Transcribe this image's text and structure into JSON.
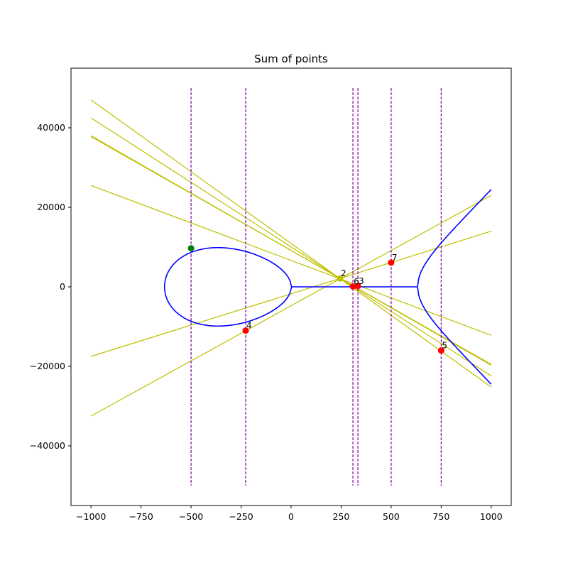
{
  "chart_data": {
    "type": "line",
    "title": "Sum of points",
    "xlabel": "",
    "ylabel": "",
    "xlim": [
      -1100,
      1100
    ],
    "ylim": [
      -55000,
      55000
    ],
    "xticks": [
      -1000,
      -750,
      -500,
      -250,
      0,
      250,
      500,
      750,
      1000
    ],
    "xtick_labels": [
      "−1000",
      "−750",
      "−500",
      "−250",
      "0",
      "250",
      "500",
      "750",
      "1000"
    ],
    "yticks": [
      -40000,
      -20000,
      0,
      20000,
      40000
    ],
    "ytick_labels": [
      "−40000",
      "−20000",
      "0",
      "20000",
      "40000"
    ],
    "grid": false,
    "curve": {
      "equation": "y^2 = x^3 - 400000x - 1000",
      "a": -400000,
      "b": -1000,
      "x_range": [
        -1000,
        1000
      ],
      "color": "#0000ff"
    },
    "chords": {
      "color": "#bfbf00",
      "x_range": [
        -1000,
        1000
      ],
      "lines": [
        {
          "y_at_x_minus_1000": 47000,
          "y_at_x_1000": -25200
        },
        {
          "y_at_x_minus_1000": 42500,
          "y_at_x_1000": -22400
        },
        {
          "y_at_x_minus_1000": 38000,
          "y_at_x_1000": -19700
        },
        {
          "y_at_x_minus_1000": 37800,
          "y_at_x_1000": -19500
        },
        {
          "y_at_x_minus_1000": 25500,
          "y_at_x_1000": -12200
        },
        {
          "y_at_x_minus_1000": -17500,
          "y_at_x_1000": 14000
        },
        {
          "y_at_x_minus_1000": -32500,
          "y_at_x_1000": 23000
        }
      ]
    },
    "vertical_lines": {
      "color": "#8000a0",
      "style": "dashed",
      "y_range": [
        -50000,
        50000
      ],
      "x": [
        -500,
        -227,
        309,
        334,
        500,
        750
      ]
    },
    "points": [
      {
        "label": "",
        "x": -500,
        "y": 9700,
        "color": "#008000"
      },
      {
        "label": "2",
        "x": 245,
        "y": 2100,
        "color": "#bfbf00"
      },
      {
        "label": "3",
        "x": 334,
        "y": 200,
        "color": "#ff0000"
      },
      {
        "label": "4",
        "x": -227,
        "y": -11000,
        "color": "#ff0000"
      },
      {
        "label": "5",
        "x": 750,
        "y": -16000,
        "color": "#ff0000"
      },
      {
        "label": "6",
        "x": 309,
        "y": 100,
        "color": "#ff0000"
      },
      {
        "label": "7",
        "x": 500,
        "y": 6100,
        "color": "#ff0000"
      }
    ]
  }
}
